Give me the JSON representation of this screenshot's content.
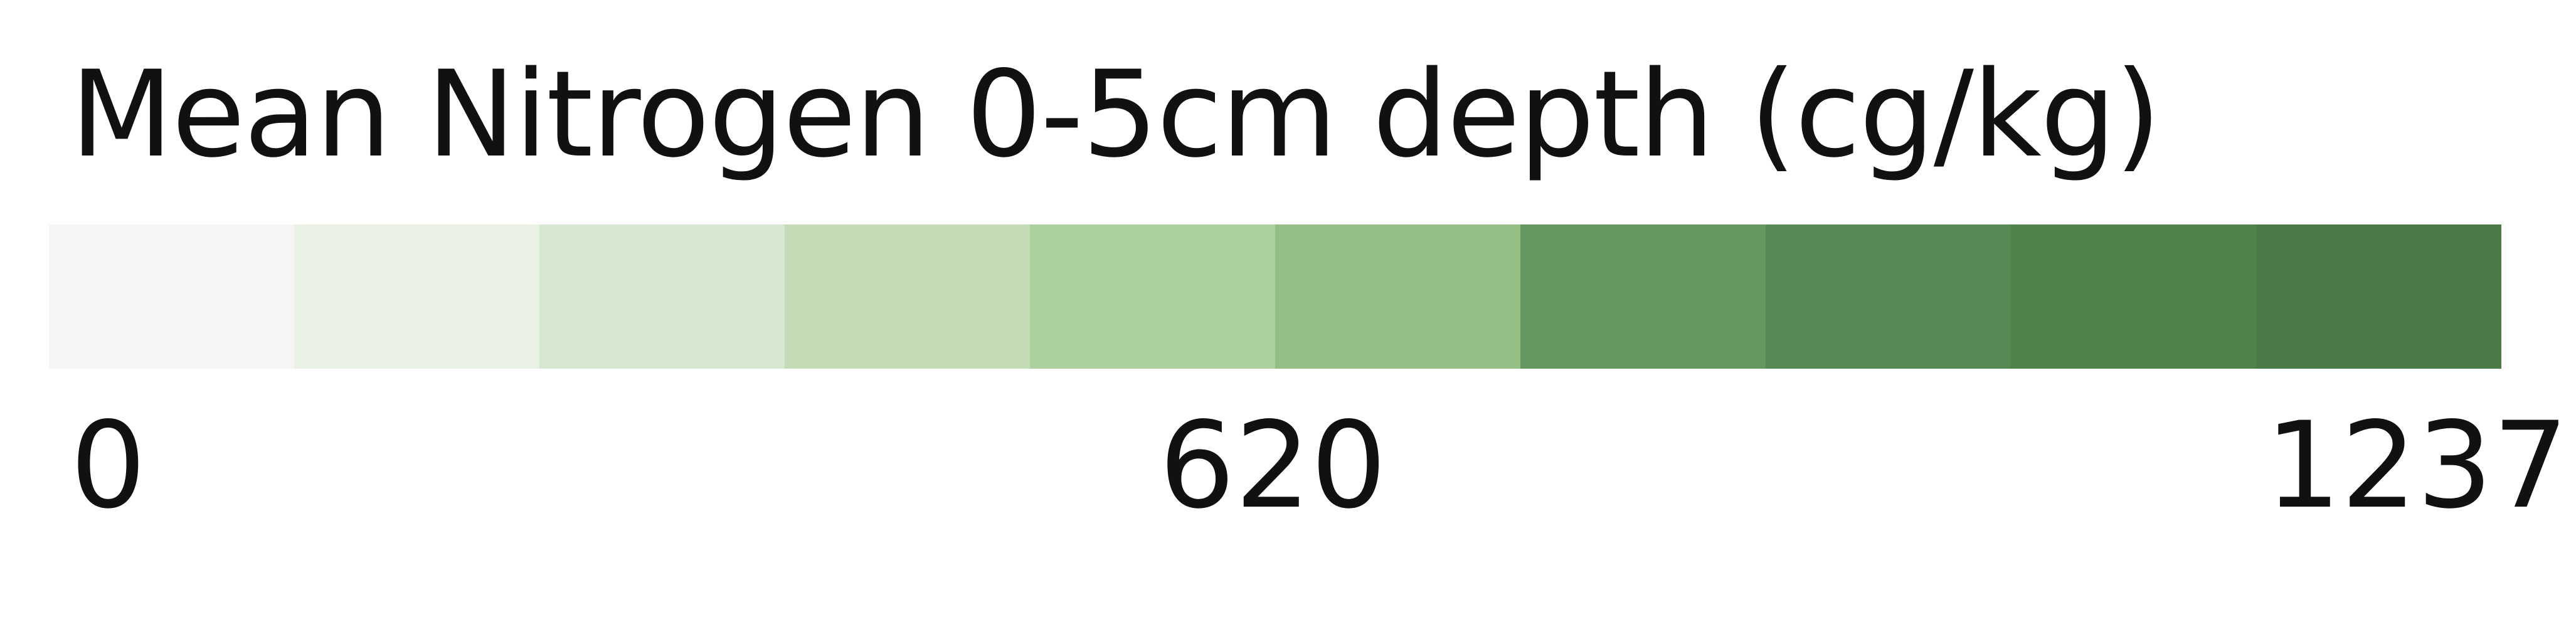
{
  "legend": {
    "title": "Mean Nitrogen 0-5cm depth (cg/kg)",
    "min_label": "0",
    "mid_label": "620",
    "max_label": "1237",
    "colors": [
      "#f5f6f3",
      "#e9f1e4",
      "#d6e7d0",
      "#c3dbb4",
      "#abcf9d",
      "#94bf84",
      "#64975f",
      "#558a54",
      "#4f814b",
      "#4a7a45"
    ]
  }
}
